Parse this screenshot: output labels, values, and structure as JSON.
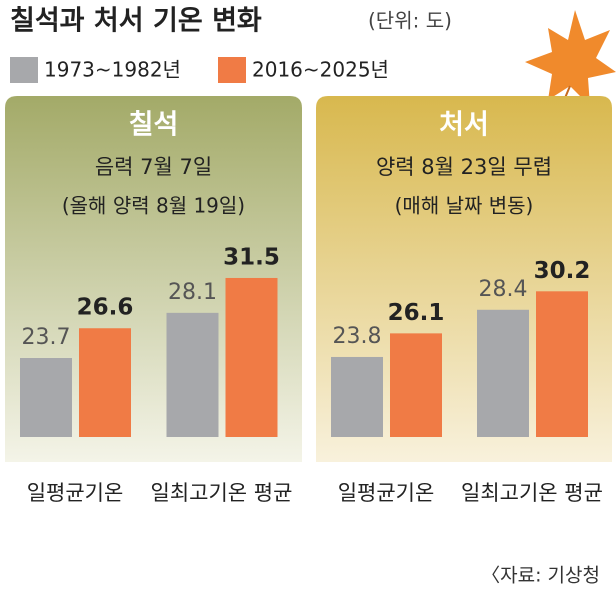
{
  "header": {
    "title": "칠석과 처서 기온 변화",
    "unit": "(단위: 도)"
  },
  "chart_data": [
    {
      "type": "bar",
      "title": "칠석",
      "subtitle": "음력 7월 7일",
      "note": "(올해 양력 8월 19일)",
      "categories": [
        "일평균기온",
        "일최고기온 평균"
      ],
      "series": [
        {
          "name": "1973~1982년",
          "color": "#a7a8ab",
          "values": [
            23.7,
            28.1
          ]
        },
        {
          "name": "2016~2025년",
          "color": "#f07b45",
          "values": [
            26.6,
            31.5
          ]
        }
      ],
      "ylim": [
        16,
        33
      ],
      "background": [
        "#a3aa68",
        "#f4f4e8"
      ]
    },
    {
      "type": "bar",
      "title": "처서",
      "subtitle": "양력 8월 23일 무렵",
      "note": "(매해 날짜 변동)",
      "categories": [
        "일평균기온",
        "일최고기온 평균"
      ],
      "series": [
        {
          "name": "1973~1982년",
          "color": "#a7a8ab",
          "values": [
            23.8,
            28.4
          ]
        },
        {
          "name": "2016~2025년",
          "color": "#f07b45",
          "values": [
            26.1,
            30.2
          ]
        }
      ],
      "ylim": [
        16,
        33
      ],
      "background": [
        "#d8b84e",
        "#f8f1dc"
      ]
    }
  ],
  "source": "〈자료: 기상청"
}
